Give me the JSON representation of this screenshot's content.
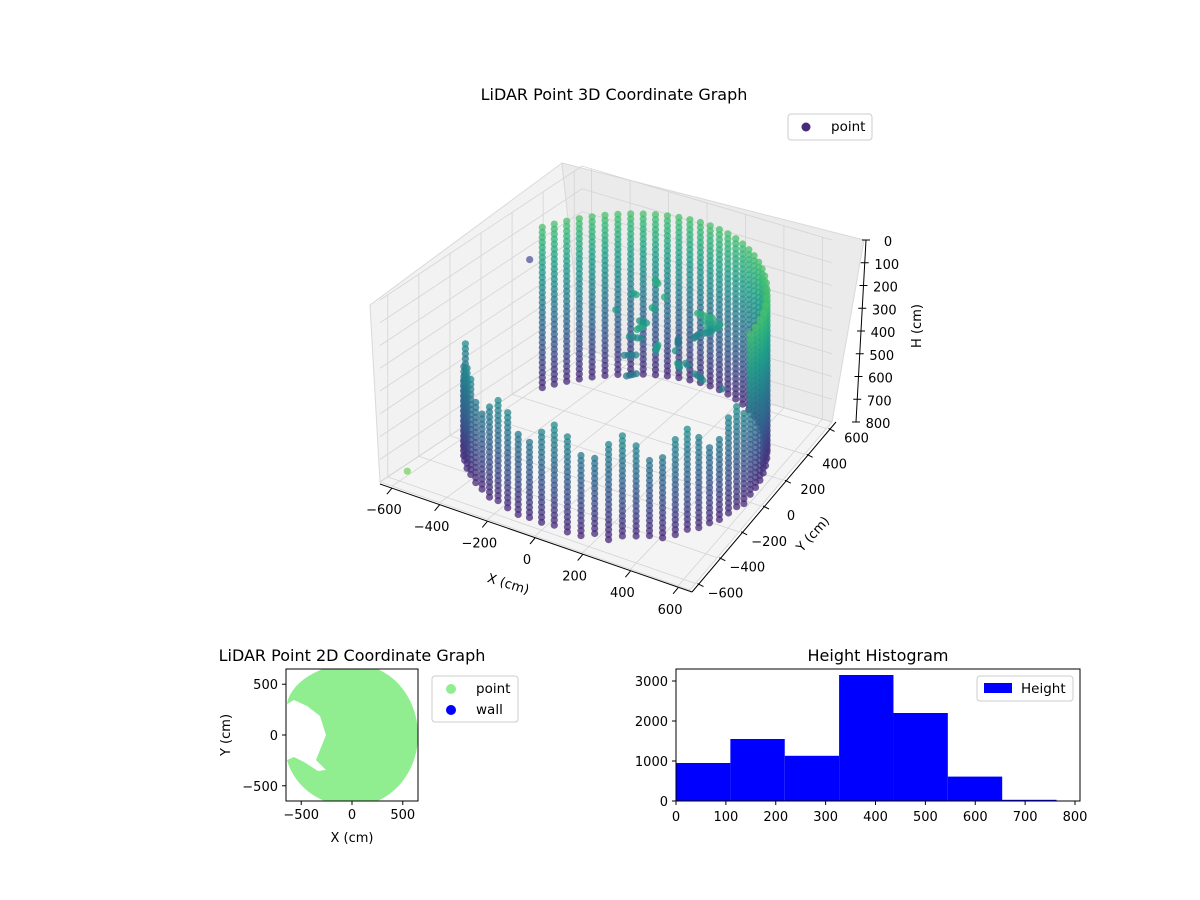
{
  "chart_data": [
    {
      "type": "scatter",
      "dims": 3,
      "title": "LiDAR Point 3D Coordinate Graph",
      "xlabel": "X (cm)",
      "ylabel": "Y (cm)",
      "zlabel": "H (cm)",
      "xticks": [
        "−600",
        "−400",
        "−200",
        "0",
        "200",
        "400",
        "600"
      ],
      "yticks": [
        "−600",
        "−400",
        "−200",
        "0",
        "200",
        "400",
        "600"
      ],
      "zticks": [
        "0",
        "100",
        "200",
        "300",
        "400",
        "500",
        "600",
        "700",
        "800"
      ],
      "xlim": [
        -650,
        650
      ],
      "ylim": [
        -650,
        650
      ],
      "zlim": [
        0,
        800
      ],
      "z_axis_inverted": true,
      "colormap": "viridis",
      "legend": {
        "position": "upper-right",
        "entries": [
          "point"
        ]
      },
      "series": [
        {
          "name": "point",
          "color": "#472c7a",
          "description_of_distribution": "ring-shaped wall of points around the origin, radius about 600 cm, heights 0–800 cm, with an opening toward negative X"
        }
      ]
    },
    {
      "type": "scatter",
      "title": "LiDAR Point 2D Coordinate Graph",
      "xlabel": "X (cm)",
      "ylabel": "Y (cm)",
      "xticks": [
        "−500",
        "0",
        "500"
      ],
      "yticks": [
        "−500",
        "0",
        "500"
      ],
      "xlim": [
        -650,
        650
      ],
      "ylim": [
        -650,
        650
      ],
      "legend": {
        "position": "outside-right",
        "entries": [
          "point",
          "wall"
        ]
      },
      "series": [
        {
          "name": "point",
          "color": "#90ee90"
        },
        {
          "name": "wall",
          "color": "#0000ff"
        }
      ]
    },
    {
      "type": "bar",
      "title": "Height Histogram",
      "xticks": [
        "0",
        "100",
        "200",
        "300",
        "400",
        "500",
        "600",
        "700",
        "800"
      ],
      "yticks": [
        "0",
        "1000",
        "2000",
        "3000"
      ],
      "xlim": [
        0,
        810
      ],
      "ylim": [
        0,
        3300
      ],
      "legend": {
        "position": "upper-right",
        "entries": [
          "Height"
        ]
      },
      "bin_edges": [
        0,
        109,
        218,
        327,
        436,
        545,
        654,
        763
      ],
      "values": [
        950,
        1550,
        1130,
        3150,
        2200,
        610,
        30
      ],
      "series": [
        {
          "name": "Height",
          "color": "#0000ff"
        }
      ]
    }
  ]
}
